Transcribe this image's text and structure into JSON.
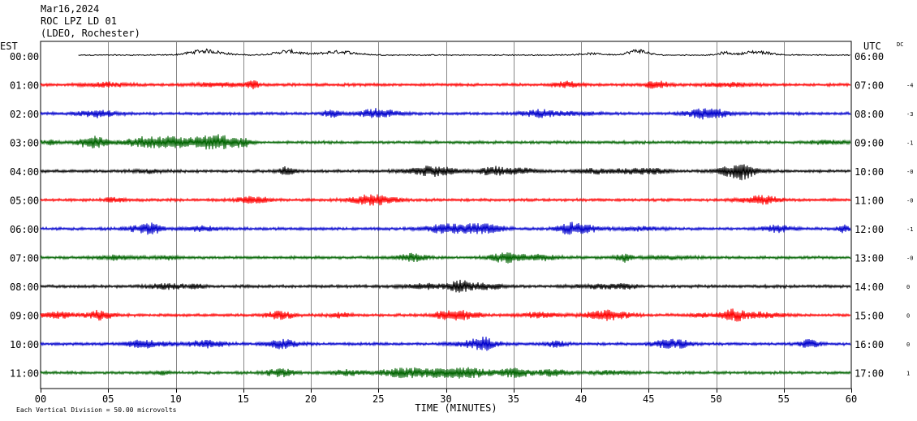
{
  "header": {
    "date": "Mar16,2024",
    "station": "ROC LPZ LD 01",
    "network": "(LDEO, Rochester)"
  },
  "labels": {
    "left_zone": "EST",
    "right_zone": "UTC",
    "dc": "DC",
    "xlabel": "TIME (MINUTES)",
    "footer": "Each Vertical Division =   50.00 microvolts"
  },
  "colors": {
    "black": "#000000",
    "red": "#ff0000",
    "blue": "#0000cc",
    "green": "#006400"
  },
  "chart_data": {
    "type": "line",
    "xlabel": "TIME (MINUTES)",
    "xlim": [
      0,
      60
    ],
    "x_ticks": [
      "00",
      "05",
      "10",
      "15",
      "20",
      "25",
      "30",
      "35",
      "40",
      "45",
      "50",
      "55",
      "60"
    ],
    "grid": true,
    "series": [
      {
        "left_time": "00:00",
        "right_time": "06:00",
        "dc": "",
        "color": "black",
        "start_minute": 2.8
      },
      {
        "left_time": "01:00",
        "right_time": "07:00",
        "dc": "-4",
        "color": "red",
        "start_minute": 0
      },
      {
        "left_time": "02:00",
        "right_time": "08:00",
        "dc": "-3",
        "color": "blue",
        "start_minute": 0
      },
      {
        "left_time": "03:00",
        "right_time": "09:00",
        "dc": "-1",
        "color": "green",
        "start_minute": 0
      },
      {
        "left_time": "04:00",
        "right_time": "10:00",
        "dc": "-0",
        "color": "black",
        "start_minute": 0
      },
      {
        "left_time": "05:00",
        "right_time": "11:00",
        "dc": "-0",
        "color": "red",
        "start_minute": 0
      },
      {
        "left_time": "06:00",
        "right_time": "12:00",
        "dc": "-1",
        "color": "blue",
        "start_minute": 0
      },
      {
        "left_time": "07:00",
        "right_time": "13:00",
        "dc": "-0",
        "color": "green",
        "start_minute": 0
      },
      {
        "left_time": "08:00",
        "right_time": "14:00",
        "dc": "0",
        "color": "black",
        "start_minute": 0
      },
      {
        "left_time": "09:00",
        "right_time": "15:00",
        "dc": "0",
        "color": "red",
        "start_minute": 0
      },
      {
        "left_time": "10:00",
        "right_time": "16:00",
        "dc": "0",
        "color": "blue",
        "start_minute": 0
      },
      {
        "left_time": "11:00",
        "right_time": "17:00",
        "dc": "1",
        "color": "green",
        "start_minute": 0
      }
    ]
  }
}
